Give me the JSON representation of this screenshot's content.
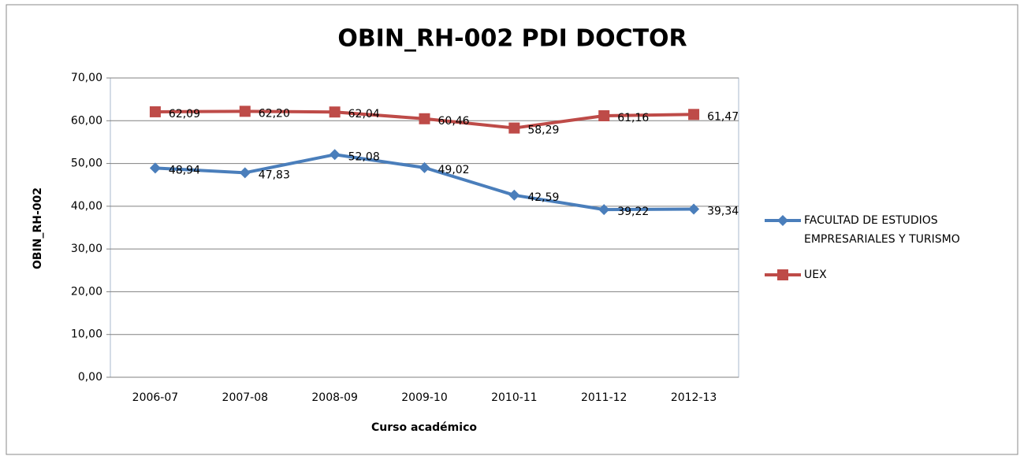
{
  "chart_data": {
    "type": "line",
    "title": "OBIN_RH-002 PDI DOCTOR",
    "xlabel": "Curso académico",
    "ylabel": "OBIN_RH-002",
    "categories": [
      "2006-07",
      "2007-08",
      "2008-09",
      "2009-10",
      "2010-11",
      "2011-12",
      "2012-13"
    ],
    "series": [
      {
        "name": "FACULTAD DE ESTUDIOS EMPRESARIALES Y TURISMO",
        "color": "#4a7ebb",
        "marker": "diamond",
        "values": [
          48.94,
          47.83,
          52.08,
          49.02,
          42.59,
          39.22,
          39.34
        ],
        "value_labels": [
          "48,94",
          "47,83",
          "52,08",
          "49,02",
          "42,59",
          "39,22",
          "39,34"
        ]
      },
      {
        "name": "UEX",
        "color": "#be4b48",
        "marker": "square",
        "values": [
          62.09,
          62.2,
          62.04,
          60.46,
          58.29,
          61.16,
          61.47
        ],
        "value_labels": [
          "62,09",
          "62,20",
          "62,04",
          "60,46",
          "58,29",
          "61,16",
          "61,47"
        ]
      }
    ],
    "ylim": [
      0,
      70
    ],
    "yticks": [
      {
        "value": 0,
        "label": "0,00"
      },
      {
        "value": 10,
        "label": "10,00"
      },
      {
        "value": 20,
        "label": "20,00"
      },
      {
        "value": 30,
        "label": "30,00"
      },
      {
        "value": 40,
        "label": "40,00"
      },
      {
        "value": 50,
        "label": "50,00"
      },
      {
        "value": 60,
        "label": "60,00"
      },
      {
        "value": 70,
        "label": "70,00"
      }
    ],
    "grid": true,
    "legend": "right"
  }
}
